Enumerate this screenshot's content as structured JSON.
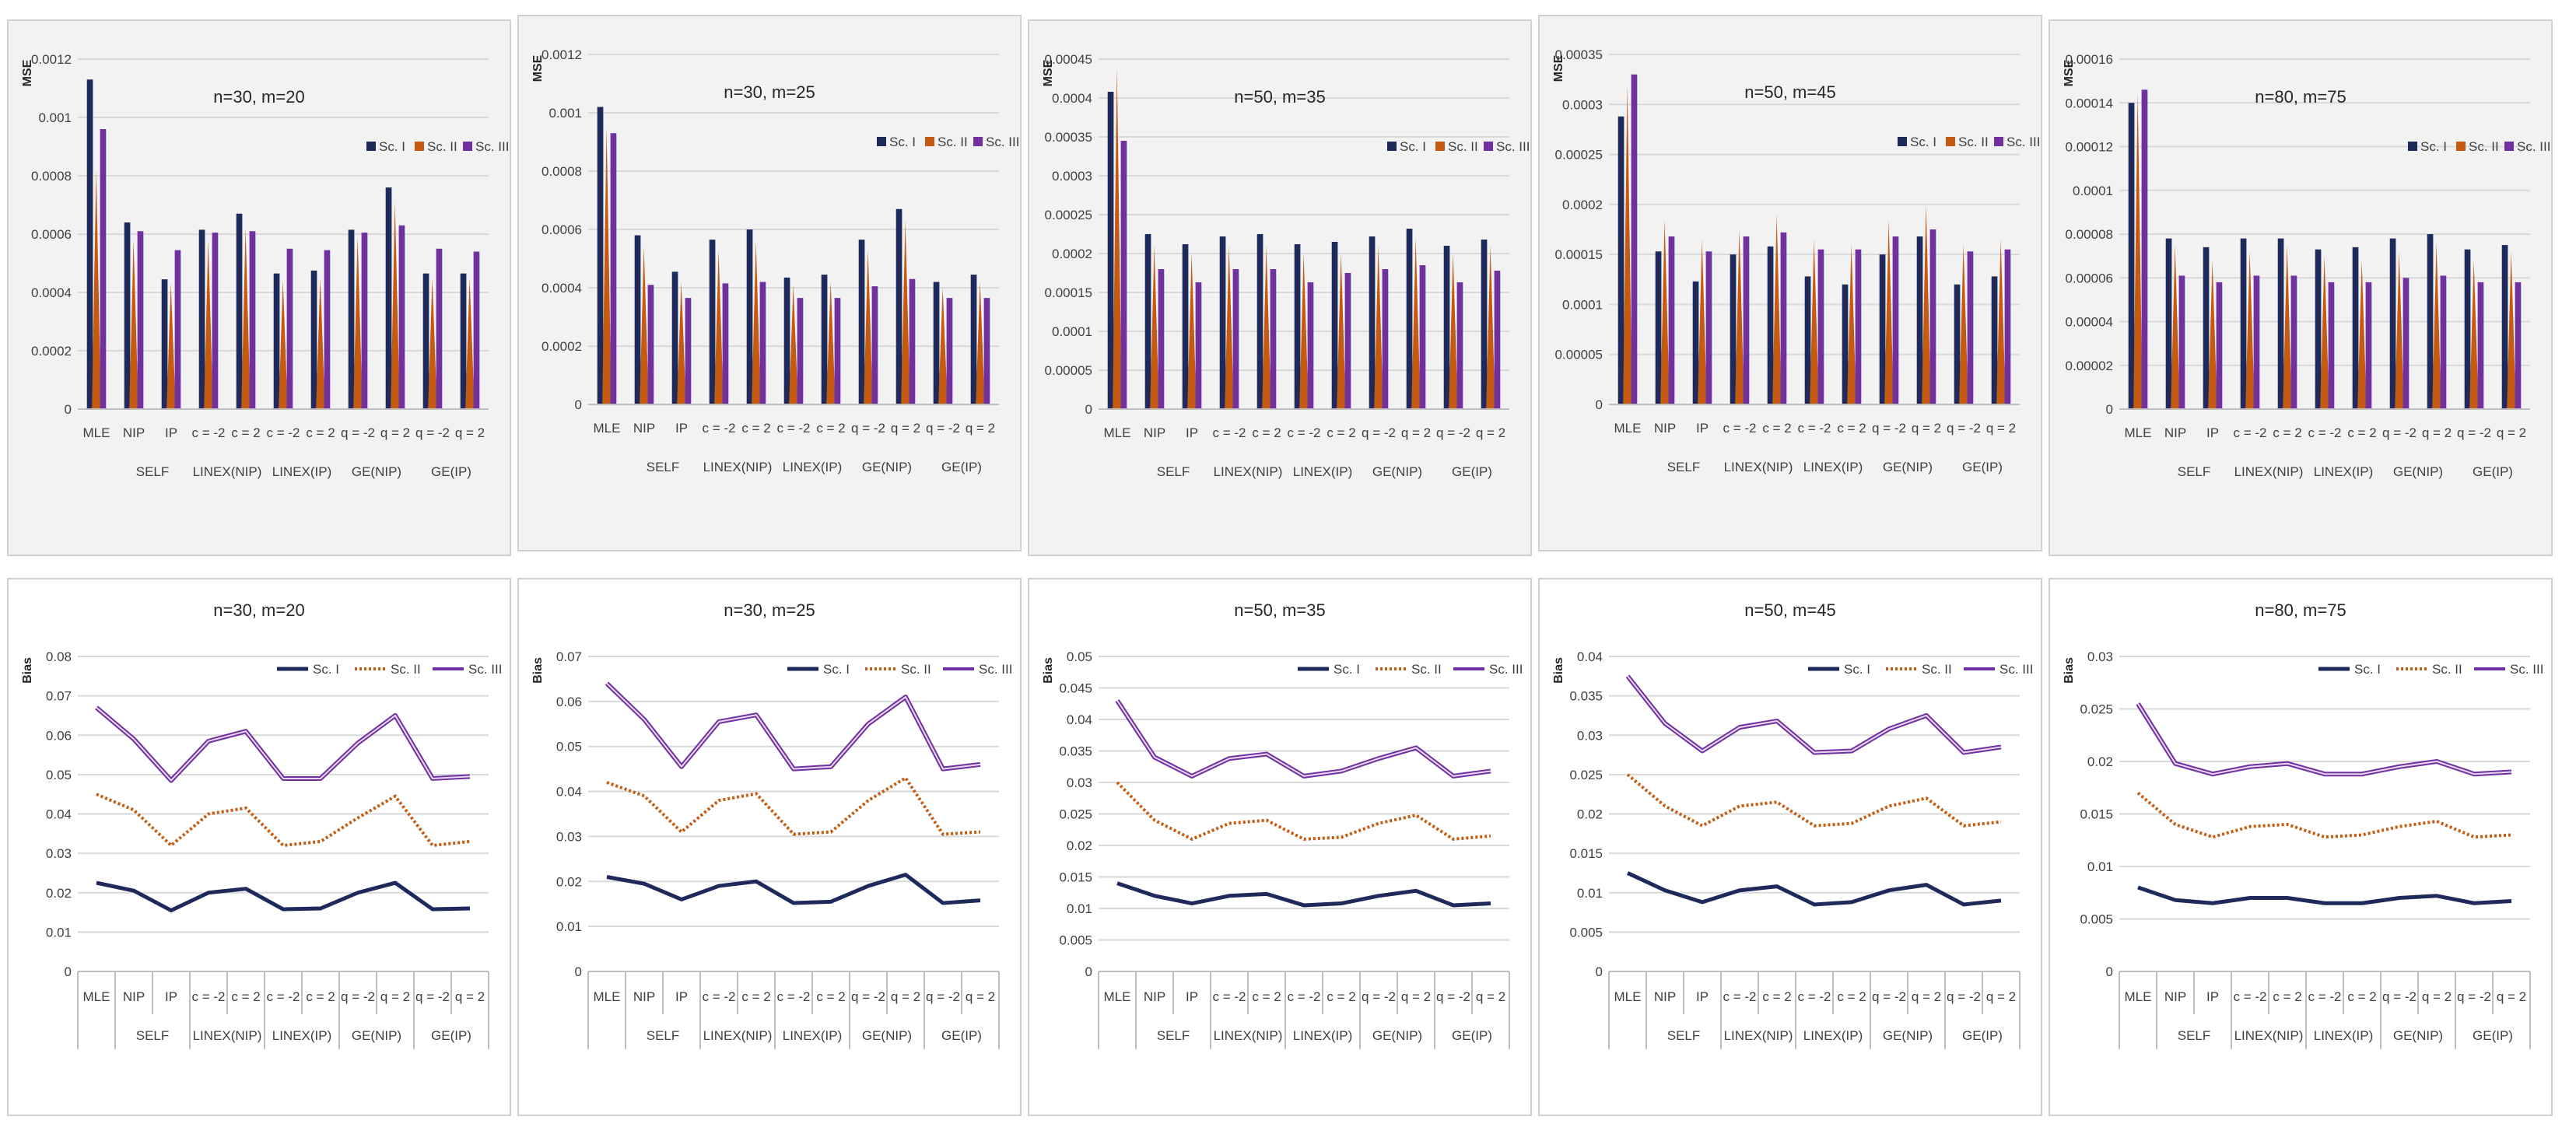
{
  "series_names": [
    "Sc. I",
    "Sc. II",
    "Sc. III"
  ],
  "colors": {
    "sc1": "#1f2a5c",
    "sc2": "#c55a11",
    "sc3": "#7030a0"
  },
  "categories": [
    "MLE",
    "NIP",
    "IP",
    "c = -2",
    "c = 2",
    "c = -2",
    "c = 2",
    "q = -2",
    "q = 2",
    "q = -2",
    "q = 2"
  ],
  "groups": [
    {
      "label": "SELF",
      "from": 1,
      "to": 2
    },
    {
      "label": "LINEX(NIP)",
      "from": 3,
      "to": 4
    },
    {
      "label": "LINEX(IP)",
      "from": 5,
      "to": 6
    },
    {
      "label": "GE(NIP)",
      "from": 7,
      "to": 8
    },
    {
      "label": "GE(IP)",
      "from": 9,
      "to": 10
    }
  ],
  "chart_data": [
    {
      "type": "bar",
      "title": "n=30, m=20",
      "ylabel": "MSE",
      "ylim": [
        0,
        0.0012
      ],
      "ticks": [
        "0",
        "0.0002",
        "0.0004",
        "0.0006",
        "0.0008",
        "0.001",
        "0.0012"
      ],
      "tick_values": [
        0,
        0.0002,
        0.0004,
        0.0006,
        0.0008,
        0.001,
        0.0012
      ],
      "series": [
        {
          "name": "Sc. I",
          "values": [
            0.00113,
            0.00064,
            0.000445,
            0.000615,
            0.00067,
            0.000465,
            0.000475,
            0.000615,
            0.00076,
            0.000465,
            0.000465
          ]
        },
        {
          "name": "Sc. II",
          "values": [
            0.00082,
            0.00058,
            0.00043,
            0.00058,
            0.00062,
            0.00044,
            0.00045,
            0.00059,
            0.00071,
            0.00045,
            0.00045
          ]
        },
        {
          "name": "Sc. III",
          "values": [
            0.00096,
            0.00061,
            0.000545,
            0.000605,
            0.00061,
            0.00055,
            0.000545,
            0.000605,
            0.00063,
            0.00055,
            0.00054
          ]
        }
      ]
    },
    {
      "type": "bar",
      "title": "n=30, m=25",
      "ylabel": "MSE",
      "ylim": [
        0,
        0.0012
      ],
      "ticks": [
        "0",
        "0.0002",
        "0.0004",
        "0.0006",
        "0.0008",
        "0.001",
        "0.0012"
      ],
      "tick_values": [
        0,
        0.0002,
        0.0004,
        0.0006,
        0.0008,
        0.001,
        0.0012
      ],
      "series": [
        {
          "name": "Sc. I",
          "values": [
            0.00102,
            0.00058,
            0.000455,
            0.000565,
            0.0006,
            0.000435,
            0.000445,
            0.000565,
            0.00067,
            0.00042,
            0.000445
          ]
        },
        {
          "name": "Sc. II",
          "values": [
            0.00095,
            0.00054,
            0.00042,
            0.00053,
            0.00056,
            0.00041,
            0.00042,
            0.00053,
            0.00063,
            0.0004,
            0.00042
          ]
        },
        {
          "name": "Sc. III",
          "values": [
            0.00093,
            0.00041,
            0.000365,
            0.000415,
            0.00042,
            0.000365,
            0.000365,
            0.000405,
            0.00043,
            0.000365,
            0.000365
          ]
        }
      ]
    },
    {
      "type": "bar",
      "title": "n=50, m=35",
      "ylabel": "MSE",
      "ylim": [
        0,
        0.00045
      ],
      "ticks": [
        "0",
        "0.00005",
        "0.0001",
        "0.00015",
        "0.0002",
        "0.00025",
        "0.0003",
        "0.00035",
        "0.0004",
        "0.00045"
      ],
      "tick_values": [
        0,
        5e-05,
        0.0001,
        0.00015,
        0.0002,
        0.00025,
        0.0003,
        0.00035,
        0.0004,
        0.00045
      ],
      "series": [
        {
          "name": "Sc. I",
          "values": [
            0.000408,
            0.000225,
            0.000212,
            0.000222,
            0.000225,
            0.000212,
            0.000215,
            0.000222,
            0.000232,
            0.00021,
            0.000218
          ]
        },
        {
          "name": "Sc. II",
          "values": [
            0.00044,
            0.00021,
            0.0002,
            0.00021,
            0.00021,
            0.0002,
            0.0002,
            0.00021,
            0.00022,
            0.0002,
            0.00021
          ]
        },
        {
          "name": "Sc. III",
          "values": [
            0.000345,
            0.00018,
            0.000163,
            0.00018,
            0.00018,
            0.000163,
            0.000175,
            0.00018,
            0.000185,
            0.000163,
            0.000178
          ]
        }
      ]
    },
    {
      "type": "bar",
      "title": "n=50, m=45",
      "ylabel": "MSE",
      "ylim": [
        0,
        0.00035
      ],
      "ticks": [
        "0",
        "0.00005",
        "0.0001",
        "0.00015",
        "0.0002",
        "0.00025",
        "0.0003",
        "0.00035"
      ],
      "tick_values": [
        0,
        5e-05,
        0.0001,
        0.00015,
        0.0002,
        0.00025,
        0.0003,
        0.00035
      ],
      "series": [
        {
          "name": "Sc. I",
          "values": [
            0.000288,
            0.000153,
            0.000123,
            0.00015,
            0.000158,
            0.000128,
            0.00012,
            0.00015,
            0.000168,
            0.00012,
            0.000128
          ]
        },
        {
          "name": "Sc. II",
          "values": [
            0.00032,
            0.000185,
            0.000165,
            0.000175,
            0.00019,
            0.000165,
            0.00016,
            0.000185,
            0.0002,
            0.00016,
            0.000165
          ]
        },
        {
          "name": "Sc. III",
          "values": [
            0.00033,
            0.000168,
            0.000153,
            0.000168,
            0.000172,
            0.000155,
            0.000155,
            0.000168,
            0.000175,
            0.000153,
            0.000155
          ]
        }
      ]
    },
    {
      "type": "bar",
      "title": "n=80, m=75",
      "ylabel": "MSE",
      "ylim": [
        0,
        0.00016
      ],
      "ticks": [
        "0",
        "0.00002",
        "0.00004",
        "0.00006",
        "0.00008",
        "0.0001",
        "0.00012",
        "0.00014",
        "0.00016"
      ],
      "tick_values": [
        0,
        2e-05,
        4e-05,
        6e-05,
        8e-05,
        0.0001,
        0.00012,
        0.00014,
        0.00016
      ],
      "series": [
        {
          "name": "Sc. I",
          "values": [
            0.00014,
            7.8e-05,
            7.4e-05,
            7.8e-05,
            7.8e-05,
            7.3e-05,
            7.4e-05,
            7.8e-05,
            8e-05,
            7.3e-05,
            7.5e-05
          ]
        },
        {
          "name": "Sc. II",
          "values": [
            0.000145,
            7.5e-05,
            6.8e-05,
            7.2e-05,
            7.5e-05,
            7e-05,
            6.8e-05,
            7.2e-05,
            7.6e-05,
            6.8e-05,
            7.2e-05
          ]
        },
        {
          "name": "Sc. III",
          "values": [
            0.000146,
            6.1e-05,
            5.8e-05,
            6.1e-05,
            6.1e-05,
            5.8e-05,
            5.8e-05,
            6e-05,
            6.1e-05,
            5.8e-05,
            5.8e-05
          ]
        }
      ]
    },
    {
      "type": "line",
      "title": "n=30, m=20",
      "ylabel": "Bias",
      "ylim": [
        0,
        0.08
      ],
      "ticks": [
        "0",
        "0.01",
        "0.02",
        "0.03",
        "0.04",
        "0.05",
        "0.06",
        "0.07",
        "0.08"
      ],
      "tick_values": [
        0,
        0.01,
        0.02,
        0.03,
        0.04,
        0.05,
        0.06,
        0.07,
        0.08
      ],
      "series": [
        {
          "name": "Sc. I",
          "values": [
            0.0225,
            0.0205,
            0.0155,
            0.02,
            0.021,
            0.0158,
            0.016,
            0.02,
            0.0225,
            0.0158,
            0.016
          ]
        },
        {
          "name": "Sc. II",
          "values": [
            0.045,
            0.041,
            0.032,
            0.04,
            0.0415,
            0.032,
            0.033,
            0.039,
            0.0445,
            0.032,
            0.033
          ]
        },
        {
          "name": "Sc. III",
          "values": [
            0.067,
            0.059,
            0.0485,
            0.0585,
            0.061,
            0.049,
            0.049,
            0.058,
            0.065,
            0.049,
            0.0495
          ]
        }
      ]
    },
    {
      "type": "line",
      "title": "n=30, m=25",
      "ylabel": "Bias",
      "ylim": [
        0,
        0.07
      ],
      "ticks": [
        "0",
        "0.01",
        "0.02",
        "0.03",
        "0.04",
        "0.05",
        "0.06",
        "0.07"
      ],
      "tick_values": [
        0,
        0.01,
        0.02,
        0.03,
        0.04,
        0.05,
        0.06,
        0.07
      ],
      "series": [
        {
          "name": "Sc. I",
          "values": [
            0.021,
            0.0195,
            0.016,
            0.019,
            0.02,
            0.0152,
            0.0155,
            0.019,
            0.0215,
            0.0152,
            0.0158
          ]
        },
        {
          "name": "Sc. II",
          "values": [
            0.042,
            0.039,
            0.031,
            0.038,
            0.0395,
            0.0305,
            0.031,
            0.038,
            0.043,
            0.0305,
            0.031
          ]
        },
        {
          "name": "Sc. III",
          "values": [
            0.064,
            0.056,
            0.0455,
            0.0555,
            0.057,
            0.045,
            0.0455,
            0.055,
            0.061,
            0.045,
            0.046
          ]
        }
      ]
    },
    {
      "type": "line",
      "title": "n=50, m=35",
      "ylabel": "Bias",
      "ylim": [
        0,
        0.05
      ],
      "ticks": [
        "0",
        "0.005",
        "0.01",
        "0.015",
        "0.02",
        "0.025",
        "0.03",
        "0.035",
        "0.04",
        "0.045",
        "0.05"
      ],
      "tick_values": [
        0,
        0.005,
        0.01,
        0.015,
        0.02,
        0.025,
        0.03,
        0.035,
        0.04,
        0.045,
        0.05
      ],
      "series": [
        {
          "name": "Sc. I",
          "values": [
            0.014,
            0.012,
            0.0108,
            0.012,
            0.0123,
            0.0105,
            0.0108,
            0.012,
            0.0128,
            0.0105,
            0.0108
          ]
        },
        {
          "name": "Sc. II",
          "values": [
            0.03,
            0.024,
            0.021,
            0.0235,
            0.024,
            0.021,
            0.0213,
            0.0235,
            0.0248,
            0.021,
            0.0215
          ]
        },
        {
          "name": "Sc. III",
          "values": [
            0.043,
            0.034,
            0.031,
            0.0338,
            0.0345,
            0.031,
            0.0318,
            0.0338,
            0.0355,
            0.031,
            0.0318
          ]
        }
      ]
    },
    {
      "type": "line",
      "title": "n=50, m=45",
      "ylabel": "Bias",
      "ylim": [
        0,
        0.04
      ],
      "ticks": [
        "0",
        "0.005",
        "0.01",
        "0.015",
        "0.02",
        "0.025",
        "0.03",
        "0.035",
        "0.04"
      ],
      "tick_values": [
        0,
        0.005,
        0.01,
        0.015,
        0.02,
        0.025,
        0.03,
        0.035,
        0.04
      ],
      "series": [
        {
          "name": "Sc. I",
          "values": [
            0.0125,
            0.0103,
            0.0088,
            0.0103,
            0.0108,
            0.0085,
            0.0088,
            0.0103,
            0.011,
            0.0085,
            0.009
          ]
        },
        {
          "name": "Sc. II",
          "values": [
            0.025,
            0.021,
            0.0185,
            0.021,
            0.0215,
            0.0185,
            0.0188,
            0.021,
            0.022,
            0.0185,
            0.019
          ]
        },
        {
          "name": "Sc. III",
          "values": [
            0.0375,
            0.0315,
            0.028,
            0.031,
            0.0318,
            0.0278,
            0.028,
            0.0308,
            0.0325,
            0.0278,
            0.0285
          ]
        }
      ]
    },
    {
      "type": "line",
      "title": "n=80, m=75",
      "ylabel": "Bias",
      "ylim": [
        0,
        0.03
      ],
      "ticks": [
        "0",
        "0.005",
        "0.01",
        "0.015",
        "0.02",
        "0.025",
        "0.03"
      ],
      "tick_values": [
        0,
        0.005,
        0.01,
        0.015,
        0.02,
        0.025,
        0.03
      ],
      "series": [
        {
          "name": "Sc. I",
          "values": [
            0.008,
            0.0068,
            0.0065,
            0.007,
            0.007,
            0.0065,
            0.0065,
            0.007,
            0.0072,
            0.0065,
            0.0067
          ]
        },
        {
          "name": "Sc. II",
          "values": [
            0.017,
            0.014,
            0.0128,
            0.0138,
            0.014,
            0.0128,
            0.013,
            0.0138,
            0.0143,
            0.0128,
            0.013
          ]
        },
        {
          "name": "Sc. III",
          "values": [
            0.0255,
            0.0198,
            0.0188,
            0.0195,
            0.0198,
            0.0188,
            0.0188,
            0.0195,
            0.02,
            0.0188,
            0.019
          ]
        }
      ]
    }
  ]
}
